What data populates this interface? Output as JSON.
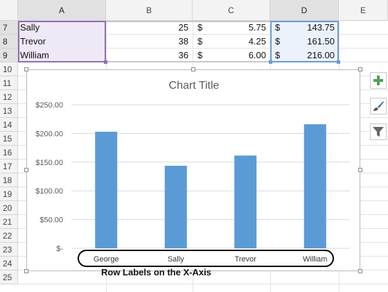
{
  "columns": [
    "A",
    "B",
    "C",
    "D",
    "E"
  ],
  "rows": [
    "7",
    "8",
    "9",
    "10",
    "11",
    "12",
    "13",
    "14",
    "15",
    "16",
    "17",
    "18",
    "19",
    "20",
    "21",
    "22",
    "23",
    "24",
    "25"
  ],
  "table": [
    {
      "name": "Sally",
      "qty": "25",
      "cur_c": "$",
      "price": "5.75",
      "cur_d": "$",
      "total": "143.75"
    },
    {
      "name": "Trevor",
      "qty": "38",
      "cur_c": "$",
      "price": "4.25",
      "cur_d": "$",
      "total": "161.50"
    },
    {
      "name": "William",
      "qty": "36",
      "cur_c": "$",
      "price": "6.00",
      "cur_d": "$",
      "total": "216.00"
    }
  ],
  "chart_data": {
    "type": "bar",
    "title": "Chart Title",
    "categories": [
      "George",
      "Sally",
      "Trevor",
      "William"
    ],
    "values": [
      203,
      143.75,
      161.5,
      216
    ],
    "ylim": [
      0,
      250
    ],
    "yticks": [
      250,
      200,
      150,
      100,
      50,
      0
    ],
    "ytick_labels": [
      "$250.00",
      "$200.00",
      "$150.00",
      "$100.00",
      "$50.00",
      "$-"
    ],
    "grid": true,
    "bar_color": "#5b9bd5"
  },
  "annotation": "Row Labels on the X-Axis",
  "chart_tools": [
    {
      "icon": "plus-icon",
      "color": "#4ea15a"
    },
    {
      "icon": "brush-icon",
      "color": "#3d6fb4"
    },
    {
      "icon": "filter-icon",
      "color": "#555555"
    }
  ]
}
